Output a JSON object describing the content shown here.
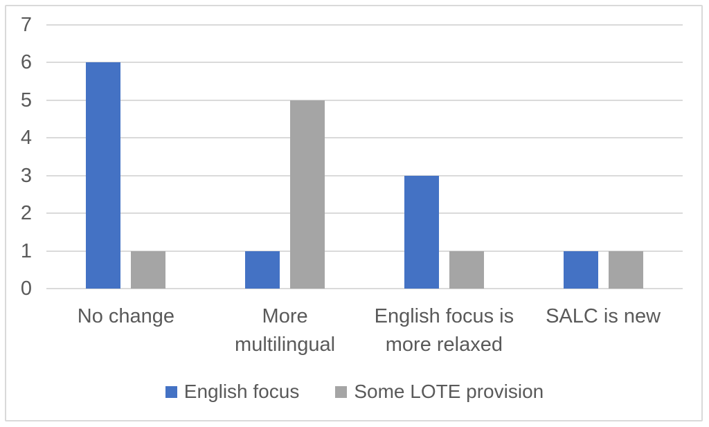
{
  "window": {
    "background_color": "#FFFFFF",
    "frame_border_color": "#D9D9D9"
  },
  "chart_data": {
    "type": "bar",
    "title": "",
    "xlabel": "",
    "ylabel": "",
    "categories": [
      "No change",
      "More multilingual",
      "English focus is more relaxed",
      "SALC is new"
    ],
    "category_label_lines": [
      [
        "No change"
      ],
      [
        "More",
        "multilingual"
      ],
      [
        "English focus is",
        "more relaxed"
      ],
      [
        "SALC is new"
      ]
    ],
    "series": [
      {
        "name": "English focus",
        "color": "#4472C4",
        "values": [
          6,
          1,
          3,
          1
        ]
      },
      {
        "name": "Some LOTE provision",
        "color": "#A5A5A5",
        "values": [
          1,
          5,
          1,
          1
        ]
      }
    ],
    "ylim": [
      0,
      7
    ],
    "yticks": [
      0,
      1,
      2,
      3,
      4,
      5,
      6,
      7
    ],
    "grid": true,
    "gridline_color": "#DADADA",
    "text_color": "#595959",
    "legend_position": "bottom"
  }
}
